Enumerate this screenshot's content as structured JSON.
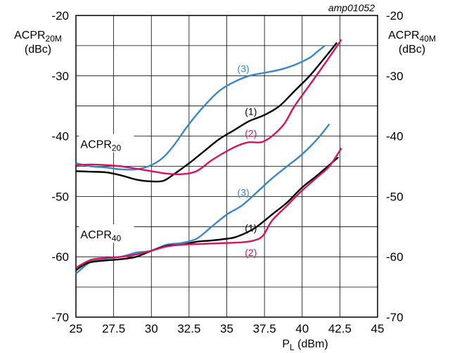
{
  "chart_data": {
    "type": "line",
    "figure_code": "amp01052",
    "x_axis": {
      "label_main": "P",
      "label_sub": "L",
      "label_unit": " (dBm)",
      "range": [
        25,
        45
      ],
      "ticks": [
        25,
        27.5,
        30,
        32.5,
        35,
        37.5,
        40,
        42.5,
        45
      ],
      "tick_labels": [
        "25",
        "27.5",
        "30",
        "32.5",
        "35",
        "37.5",
        "40",
        "42.5",
        "45"
      ]
    },
    "y_axis_left": {
      "label_main": "ACPR",
      "label_sub": "20M",
      "label_unit": "(dBc)",
      "range": [
        -70,
        -20
      ],
      "ticks": [
        -70,
        -60,
        -50,
        -40,
        -30,
        -20
      ],
      "tick_labels": [
        "-70",
        "-60",
        "-50",
        "-40",
        "-30",
        "-20"
      ]
    },
    "y_axis_right": {
      "label_main": "ACPR",
      "label_sub": "40M",
      "label_unit": "(dBc)",
      "range": [
        -70,
        -20
      ],
      "ticks": [
        -70,
        -60,
        -50,
        -40,
        -30,
        -20
      ],
      "tick_labels": [
        "-70",
        "-60",
        "-50",
        "-40",
        "-30",
        "-20"
      ]
    },
    "grid": true,
    "group_labels": [
      {
        "main": "ACPR",
        "sub": "20",
        "at": [
          25.3,
          -41.5
        ]
      },
      {
        "main": "ACPR",
        "sub": "40",
        "at": [
          25.3,
          -56.5
        ]
      }
    ],
    "colors": {
      "1": "#000000",
      "2": "#d6145a",
      "3": "#3a87c6"
    },
    "series": [
      {
        "name": "(3)",
        "group": "ACPR20",
        "color": "#3a87c6",
        "label_at": [
          36.1,
          -28.8
        ],
        "points": [
          [
            25,
            -44.5
          ],
          [
            26,
            -45
          ],
          [
            27,
            -45.2
          ],
          [
            28,
            -45.5
          ],
          [
            29,
            -45.5
          ],
          [
            30,
            -44.8
          ],
          [
            30.8,
            -43.5
          ],
          [
            31.5,
            -41.5
          ],
          [
            32.5,
            -38
          ],
          [
            33.5,
            -35
          ],
          [
            34.5,
            -32.5
          ],
          [
            35.5,
            -31
          ],
          [
            36.5,
            -30
          ],
          [
            37.5,
            -29.5
          ],
          [
            38.5,
            -29
          ],
          [
            39.5,
            -28.2
          ],
          [
            40.5,
            -27
          ],
          [
            41,
            -26
          ],
          [
            41.5,
            -25
          ]
        ]
      },
      {
        "name": "(1)",
        "group": "ACPR20",
        "color": "#000000",
        "label_at": [
          36.6,
          -35.9
        ],
        "points": [
          [
            25,
            -45.8
          ],
          [
            26,
            -45.9
          ],
          [
            27,
            -46
          ],
          [
            28,
            -46.5
          ],
          [
            29,
            -47.2
          ],
          [
            30,
            -47.5
          ],
          [
            30.8,
            -47.4
          ],
          [
            31.5,
            -46.3
          ],
          [
            32.5,
            -44.5
          ],
          [
            33.5,
            -42.5
          ],
          [
            34.5,
            -40.5
          ],
          [
            35.5,
            -39
          ],
          [
            36.5,
            -37.5
          ],
          [
            37.5,
            -36.5
          ],
          [
            38.5,
            -35
          ],
          [
            39.5,
            -32.5
          ],
          [
            40.5,
            -30
          ],
          [
            41.5,
            -27
          ],
          [
            42.3,
            -24.5
          ]
        ]
      },
      {
        "name": "(2)",
        "group": "ACPR20",
        "color": "#d6145a",
        "label_at": [
          36.6,
          -39.5
        ],
        "points": [
          [
            25,
            -44.8
          ],
          [
            26,
            -44.7
          ],
          [
            27,
            -44.8
          ],
          [
            28,
            -45
          ],
          [
            29,
            -45.4
          ],
          [
            30,
            -45.8
          ],
          [
            31,
            -46.2
          ],
          [
            32,
            -46.3
          ],
          [
            33,
            -45.8
          ],
          [
            34,
            -44
          ],
          [
            35,
            -42.5
          ],
          [
            35.8,
            -41.5
          ],
          [
            36.5,
            -41
          ],
          [
            37.3,
            -41
          ],
          [
            38,
            -40
          ],
          [
            38.8,
            -38
          ],
          [
            39.5,
            -35
          ],
          [
            40.5,
            -31.5
          ],
          [
            41.5,
            -28
          ],
          [
            42.6,
            -24
          ]
        ]
      },
      {
        "name": "(3)",
        "group": "ACPR40",
        "color": "#3a87c6",
        "label_at": [
          36.1,
          -49.3
        ],
        "points": [
          [
            25,
            -62.8
          ],
          [
            26,
            -60.8
          ],
          [
            27,
            -60.3
          ],
          [
            28,
            -60
          ],
          [
            29,
            -59.3
          ],
          [
            30,
            -59
          ],
          [
            31,
            -58
          ],
          [
            32,
            -57.7
          ],
          [
            33,
            -57
          ],
          [
            34,
            -55
          ],
          [
            35,
            -53
          ],
          [
            36,
            -51.5
          ],
          [
            37,
            -49.3
          ],
          [
            38,
            -47
          ],
          [
            39,
            -45
          ],
          [
            40,
            -43
          ],
          [
            41,
            -40.5
          ],
          [
            41.8,
            -38
          ]
        ]
      },
      {
        "name": "(1)",
        "group": "ACPR40",
        "color": "#000000",
        "label_at": [
          36.6,
          -55.2
        ],
        "points": [
          [
            25,
            -62.2
          ],
          [
            25.8,
            -61
          ],
          [
            27,
            -60.6
          ],
          [
            28,
            -60.4
          ],
          [
            29,
            -60
          ],
          [
            30,
            -59
          ],
          [
            31,
            -58.2
          ],
          [
            32,
            -58
          ],
          [
            33,
            -57.5
          ],
          [
            34,
            -57.3
          ],
          [
            35,
            -57
          ],
          [
            35.5,
            -56.8
          ],
          [
            36.3,
            -56
          ],
          [
            37,
            -55
          ],
          [
            38,
            -53
          ],
          [
            39,
            -51
          ],
          [
            40,
            -48.5
          ],
          [
            41,
            -46.5
          ],
          [
            42.4,
            -43.5
          ]
        ]
      },
      {
        "name": "(2)",
        "group": "ACPR40",
        "color": "#d6145a",
        "label_at": [
          36.6,
          -59.3
        ],
        "points": [
          [
            25,
            -61.8
          ],
          [
            26,
            -60.5
          ],
          [
            27,
            -60.2
          ],
          [
            28,
            -60
          ],
          [
            29,
            -59.6
          ],
          [
            30,
            -59
          ],
          [
            31,
            -58.3
          ],
          [
            32,
            -58
          ],
          [
            33,
            -57.9
          ],
          [
            34,
            -57.8
          ],
          [
            35,
            -57.7
          ],
          [
            36,
            -57.6
          ],
          [
            36.8,
            -57.3
          ],
          [
            37.4,
            -56.5
          ],
          [
            38,
            -54
          ],
          [
            39,
            -51.5
          ],
          [
            40,
            -49
          ],
          [
            41,
            -46.8
          ],
          [
            41.8,
            -45
          ],
          [
            42.6,
            -42
          ]
        ]
      }
    ]
  }
}
